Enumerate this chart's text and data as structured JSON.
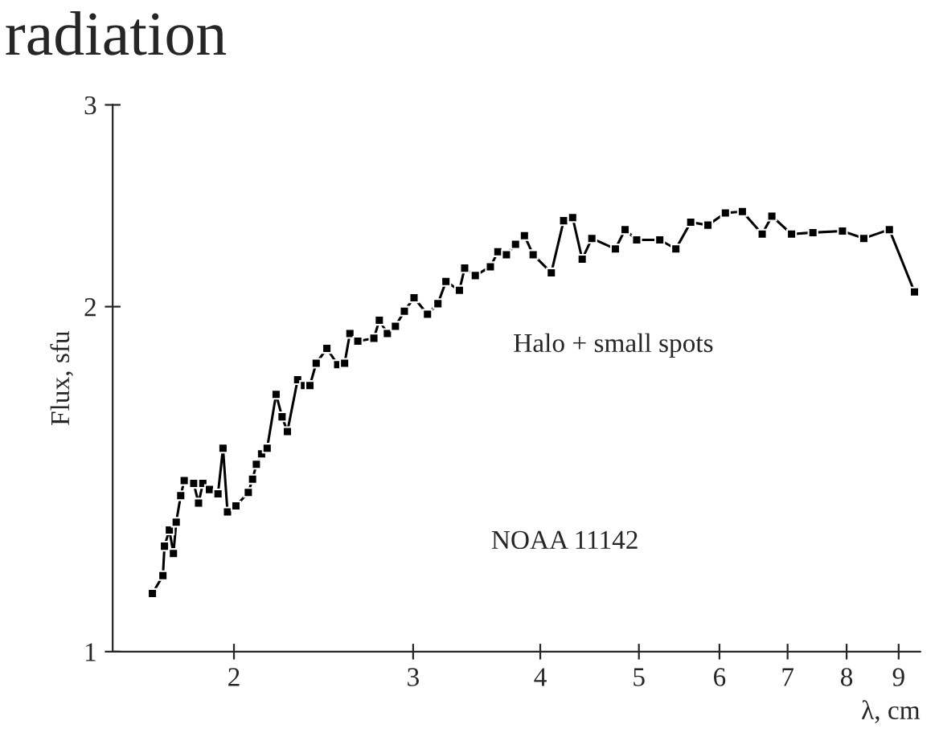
{
  "chart_data": {
    "type": "line",
    "title": "radiation",
    "xlabel": "λ, cm",
    "ylabel": "Flux, sfu",
    "log": "xy",
    "marker": "square",
    "line_style": "solid",
    "grid": false,
    "legend": false,
    "xlim": [
      1.52,
      9.45
    ],
    "ylim": [
      1,
      3
    ],
    "xticks": [
      2,
      3,
      4,
      5,
      6,
      7,
      8,
      9
    ],
    "yticks": [
      1,
      2,
      3
    ],
    "annotations": [
      "Halo + small spots",
      "NOAA 11142"
    ],
    "x": [
      1.663,
      1.703,
      1.709,
      1.728,
      1.744,
      1.755,
      1.773,
      1.787,
      1.826,
      1.846,
      1.864,
      1.892,
      1.929,
      1.951,
      1.971,
      2.009,
      2.066,
      2.086,
      2.104,
      2.129,
      2.156,
      2.2,
      2.23,
      2.257,
      2.31,
      2.346,
      2.375,
      2.409,
      2.468,
      2.529,
      2.569,
      2.6,
      2.647,
      2.745,
      2.779,
      2.83,
      2.882,
      2.941,
      3.006,
      3.099,
      3.173,
      3.231,
      3.331,
      3.371,
      3.453,
      3.573,
      3.634,
      3.705,
      3.782,
      3.859,
      3.936,
      4.101,
      4.217,
      4.304,
      4.398,
      4.495,
      4.741,
      4.846,
      4.975,
      5.242,
      5.436,
      5.622,
      5.845,
      6.081,
      6.319,
      6.609,
      6.755,
      7.063,
      7.413,
      7.925,
      8.317,
      8.813,
      9.328
    ],
    "series": [
      {
        "color": "#000000",
        "values": [
          1.124,
          1.165,
          1.236,
          1.277,
          1.218,
          1.297,
          1.368,
          1.41,
          1.402,
          1.348,
          1.402,
          1.385,
          1.373,
          1.505,
          1.324,
          1.34,
          1.377,
          1.414,
          1.457,
          1.488,
          1.505,
          1.677,
          1.603,
          1.556,
          1.727,
          1.707,
          1.707,
          1.785,
          1.839,
          1.78,
          1.785,
          1.895,
          1.866,
          1.877,
          1.946,
          1.895,
          1.923,
          1.982,
          2.036,
          1.97,
          2.012,
          2.104,
          2.067,
          2.161,
          2.129,
          2.167,
          2.233,
          2.22,
          2.267,
          2.307,
          2.22,
          2.141,
          2.377,
          2.392,
          2.2,
          2.294,
          2.246,
          2.335,
          2.287,
          2.287,
          2.246,
          2.37,
          2.356,
          2.414,
          2.421,
          2.314,
          2.399,
          2.314,
          2.321,
          2.328,
          2.294,
          2.335,
          2.06
        ]
      }
    ]
  }
}
